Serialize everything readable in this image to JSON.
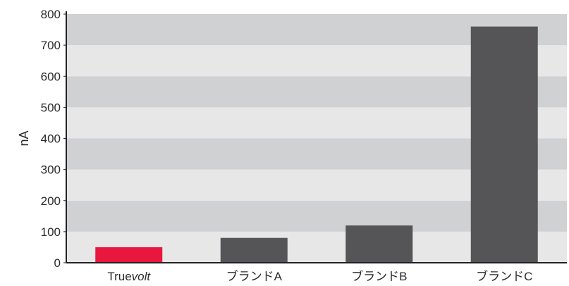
{
  "chart_data": {
    "type": "bar",
    "ylabel": "nA",
    "ylim": [
      0,
      800
    ],
    "yticks": [
      0,
      100,
      200,
      300,
      400,
      500,
      600,
      700,
      800
    ],
    "grid": "alternating horizontal bands",
    "categories": [
      "Truevolt",
      "ブランドA",
      "ブランドB",
      "ブランドC"
    ],
    "category_label_parts": [
      {
        "prefix": "True",
        "italic": "volt"
      },
      {
        "prefix": "ブランドA",
        "italic": ""
      },
      {
        "prefix": "ブランドB",
        "italic": ""
      },
      {
        "prefix": "ブランドC",
        "italic": ""
      }
    ],
    "values": [
      50,
      80,
      120,
      760
    ],
    "colors": {
      "highlight_bar": "#e8173d",
      "bar": "#555557",
      "band_dark": "#d0d1d3",
      "band_light": "#e7e7e8",
      "axis": "#222222"
    }
  }
}
